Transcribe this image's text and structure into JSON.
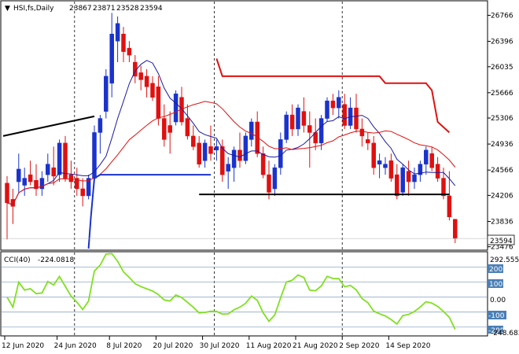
{
  "chart_data": {
    "type": "candlestick",
    "header": {
      "symbol": "HSI,fs,Daily",
      "ohlc": [
        "23867",
        "23871",
        "23528",
        "23594"
      ]
    },
    "price_axis": {
      "ticks": [
        26766,
        26396,
        26035,
        25666,
        25306,
        24936,
        24566,
        24206,
        23836,
        23476
      ],
      "ylim": [
        23450,
        26950
      ],
      "last_price_label": "23594",
      "last_price": 23594
    },
    "x_axis": {
      "labels": [
        {
          "text": "12 Jun 2020",
          "i": 0
        },
        {
          "text": "24 Jun 2020",
          "i": 9
        },
        {
          "text": "8 Jul 2020",
          "i": 18
        },
        {
          "text": "20 Jul 2020",
          "i": 26
        },
        {
          "text": "30 Jul 2020",
          "i": 34
        },
        {
          "text": "11 Aug 2020",
          "i": 42
        },
        {
          "text": "21 Aug 2020",
          "i": 50
        },
        {
          "text": "2 Sep 2020",
          "i": 58
        },
        {
          "text": "14 Sep 2020",
          "i": 66
        }
      ]
    },
    "candles": [
      [
        24380,
        24480,
        23580,
        24100
      ],
      [
        24150,
        24300,
        23800,
        24050
      ],
      [
        24400,
        24800,
        24250,
        24580
      ],
      [
        24350,
        24600,
        24200,
        24450
      ],
      [
        24500,
        24700,
        24350,
        24400
      ],
      [
        24420,
        24650,
        24200,
        24300
      ],
      [
        24300,
        24550,
        24200,
        24450
      ],
      [
        24500,
        24800,
        24400,
        24650
      ],
      [
        24600,
        24900,
        24350,
        24480
      ],
      [
        24500,
        25000,
        24400,
        24950
      ],
      [
        24950,
        25050,
        24400,
        24450
      ],
      [
        24500,
        24700,
        24300,
        24400
      ],
      [
        24450,
        24600,
        24200,
        24300
      ],
      [
        24300,
        24450,
        24050,
        24200
      ],
      [
        24200,
        24500,
        24150,
        24450
      ],
      [
        24450,
        25200,
        24400,
        25100
      ],
      [
        25100,
        25350,
        24800,
        25300
      ],
      [
        25400,
        26000,
        25300,
        25900
      ],
      [
        25800,
        26800,
        25600,
        26500
      ],
      [
        26400,
        26750,
        26100,
        26650
      ],
      [
        26500,
        26600,
        26100,
        26250
      ],
      [
        26300,
        26400,
        26100,
        26200
      ],
      [
        26100,
        26200,
        25800,
        25900
      ],
      [
        25950,
        26050,
        25700,
        25850
      ],
      [
        25900,
        26000,
        25600,
        25750
      ],
      [
        25800,
        25900,
        25550,
        25600
      ],
      [
        25750,
        25900,
        25200,
        25300
      ],
      [
        25300,
        25500,
        24900,
        25000
      ],
      [
        25200,
        25400,
        24800,
        25100
      ],
      [
        25250,
        25700,
        25200,
        25650
      ],
      [
        25600,
        25750,
        25200,
        25250
      ],
      [
        25300,
        25500,
        25000,
        25050
      ],
      [
        25050,
        25200,
        24850,
        24900
      ],
      [
        24950,
        25050,
        24600,
        24650
      ],
      [
        24700,
        25000,
        24600,
        24950
      ],
      [
        24900,
        25200,
        24700,
        24800
      ],
      [
        24850,
        25000,
        24700,
        24900
      ],
      [
        24900,
        25000,
        24400,
        24500
      ],
      [
        24550,
        24750,
        24300,
        24650
      ],
      [
        24600,
        24900,
        24400,
        24850
      ],
      [
        24850,
        25100,
        24600,
        24700
      ],
      [
        24700,
        25100,
        24650,
        25050
      ],
      [
        25000,
        25300,
        24900,
        25250
      ],
      [
        25250,
        25400,
        24750,
        24800
      ],
      [
        24800,
        24900,
        24450,
        24500
      ],
      [
        24500,
        24700,
        24150,
        24250
      ],
      [
        24300,
        24650,
        24200,
        24600
      ],
      [
        24600,
        25100,
        24500,
        25000
      ],
      [
        25000,
        25400,
        24950,
        25350
      ],
      [
        25350,
        25500,
        25050,
        25150
      ],
      [
        25150,
        25500,
        25050,
        25450
      ],
      [
        25400,
        25600,
        25100,
        25200
      ],
      [
        25200,
        25400,
        24600,
        25100
      ],
      [
        25100,
        25300,
        24850,
        24950
      ],
      [
        24950,
        25350,
        24850,
        25300
      ],
      [
        25300,
        25600,
        25250,
        25550
      ],
      [
        25550,
        25650,
        25350,
        25450
      ],
      [
        25450,
        25700,
        25300,
        25600
      ],
      [
        25500,
        25650,
        25150,
        25200
      ],
      [
        25200,
        25600,
        25150,
        25450
      ],
      [
        25450,
        25650,
        25100,
        25150
      ],
      [
        25150,
        25300,
        24900,
        25050
      ],
      [
        25000,
        25100,
        24850,
        24950
      ],
      [
        24950,
        25050,
        24500,
        24600
      ],
      [
        24650,
        24800,
        24450,
        24700
      ],
      [
        24600,
        24750,
        24500,
        24650
      ],
      [
        24700,
        24800,
        24400,
        24450
      ],
      [
        24500,
        24650,
        24150,
        24200
      ],
      [
        24250,
        24650,
        24200,
        24600
      ],
      [
        24550,
        24700,
        24200,
        24400
      ],
      [
        24400,
        24600,
        24300,
        24500
      ],
      [
        24500,
        24700,
        24400,
        24650
      ],
      [
        24650,
        24900,
        24500,
        24850
      ],
      [
        24800,
        24900,
        24550,
        24600
      ],
      [
        24650,
        24750,
        24400,
        24450
      ],
      [
        24450,
        24600,
        24150,
        24200
      ],
      [
        24200,
        24550,
        23850,
        23900
      ],
      [
        23867,
        23871,
        23528,
        23594
      ]
    ],
    "cci_panel": {
      "label": "CCI(40)",
      "value_label": "-224.0818",
      "axis_labels": [
        "292.5551",
        "200",
        "100",
        "0.00",
        "-100",
        "-200",
        "-248.683"
      ],
      "levels": [
        200,
        100,
        0,
        -100,
        -200
      ],
      "ylim": [
        -248.683,
        292.5551
      ]
    }
  }
}
